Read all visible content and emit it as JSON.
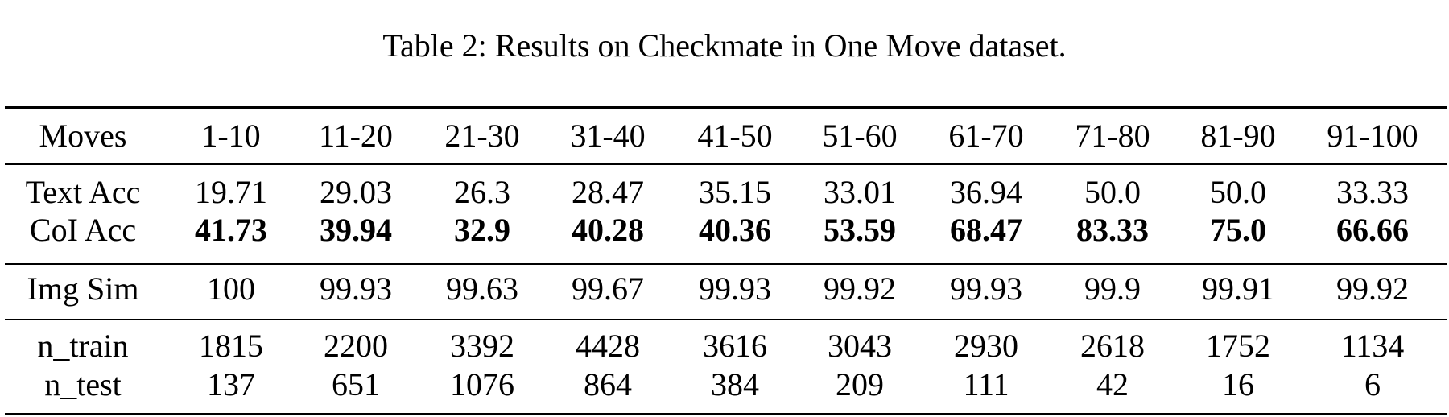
{
  "caption": "Table 2: Results on Checkmate in One Move dataset.",
  "table": {
    "header": [
      "Moves",
      "1-10",
      "11-20",
      "21-30",
      "31-40",
      "41-50",
      "51-60",
      "61-70",
      "71-80",
      "81-90",
      "91-100"
    ],
    "groups": [
      [
        [
          "Text Acc",
          "19.71",
          "29.03",
          "26.3",
          "28.47",
          "35.15",
          "33.01",
          "36.94",
          "50.0",
          "50.0",
          "33.33"
        ],
        [
          "CoI Acc",
          "41.73",
          "39.94",
          "32.9",
          "40.28",
          "40.36",
          "53.59",
          "68.47",
          "83.33",
          "75.0",
          "66.66"
        ]
      ],
      [
        [
          "Img Sim",
          "100",
          "99.93",
          "99.63",
          "99.67",
          "99.93",
          "99.92",
          "99.93",
          "99.9",
          "99.91",
          "99.92"
        ]
      ],
      [
        [
          "n_train",
          "1815",
          "2200",
          "3392",
          "4428",
          "3616",
          "3043",
          "2930",
          "2618",
          "1752",
          "1134"
        ],
        [
          "n_test",
          "137",
          "651",
          "1076",
          "864",
          "384",
          "209",
          "111",
          "42",
          "16",
          "6"
        ]
      ]
    ]
  }
}
